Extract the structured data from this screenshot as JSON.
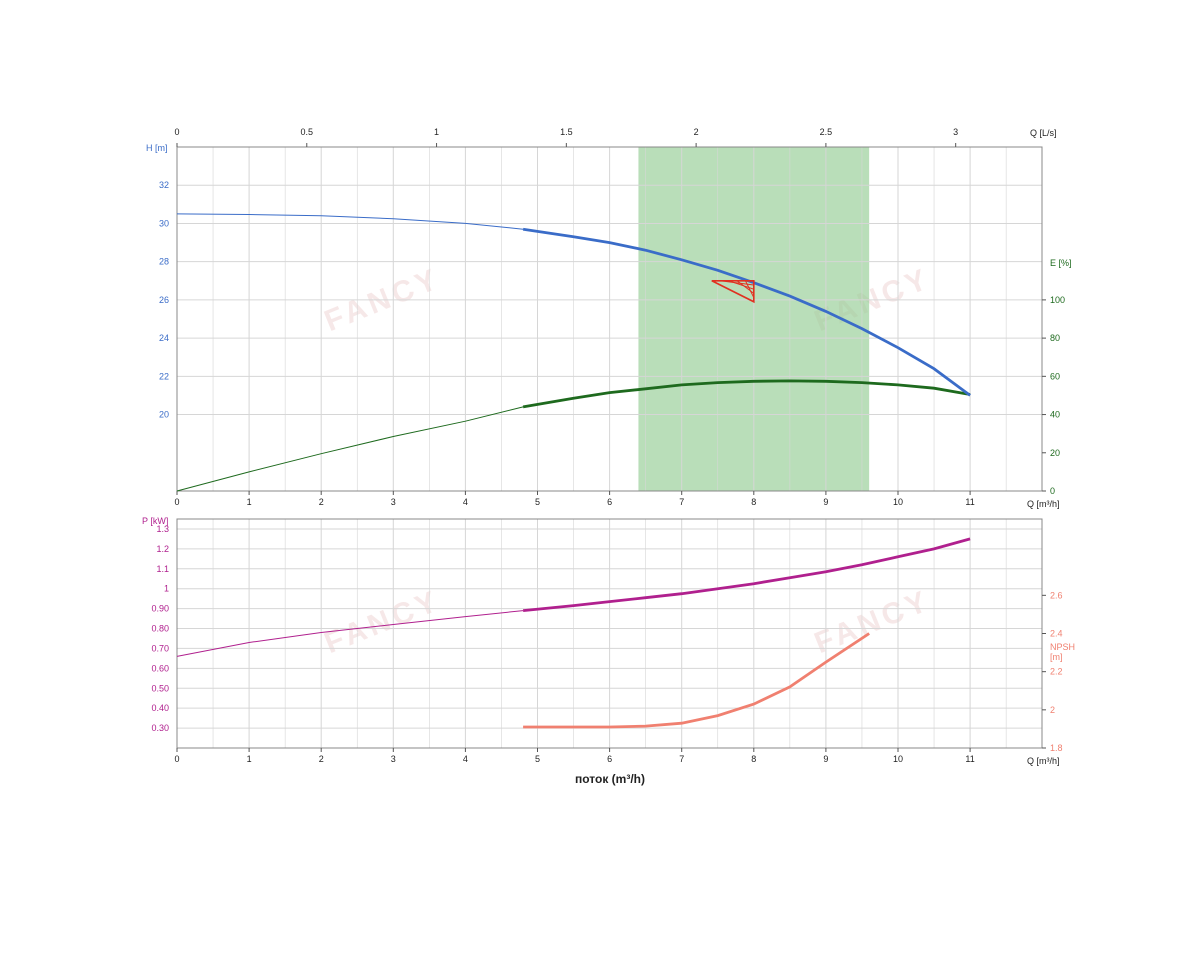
{
  "colors": {
    "head": "#3a6cc8",
    "efficiency": "#1e6a1e",
    "power": "#b0208e",
    "npsh": "#f08070",
    "range": "#93cc93",
    "marker": "#e03020",
    "grid": "#d6d6d6",
    "axis_text": "#222222"
  },
  "chart_data": [
    {
      "type": "line",
      "xlabel": "Q [m³/h]",
      "xlabel_top": "Q [L/s]",
      "x_ticks": [
        "0",
        "1",
        "2",
        "3",
        "4",
        "5",
        "6",
        "7",
        "8",
        "9",
        "10",
        "11"
      ],
      "x_top_ticks": [
        "0",
        "0.5",
        "1",
        "1.5",
        "2",
        "2.5",
        "3"
      ],
      "xlim": [
        0,
        12
      ],
      "grid": true,
      "operating_range": [
        6.4,
        9.6
      ],
      "duty_point": {
        "x": 8,
        "y": 27
      },
      "left_axis": {
        "label": "H [m]",
        "ticks": [
          "20",
          "22",
          "24",
          "26",
          "28",
          "30",
          "32"
        ],
        "ylim": [
          16,
          34
        ]
      },
      "right_axis": {
        "label": "E [%]",
        "ticks": [
          "0",
          "20",
          "40",
          "60",
          "80",
          "100"
        ],
        "ylim": [
          0,
          180
        ]
      },
      "series": [
        {
          "name": "H",
          "axis": "left",
          "x": [
            0,
            1,
            2,
            3,
            4,
            4.8,
            5.5,
            6,
            6.5,
            7,
            7.5,
            8,
            8.5,
            9,
            9.5,
            10,
            10.5,
            11
          ],
          "values": [
            30.5,
            30.47,
            30.4,
            30.25,
            30.0,
            29.7,
            29.3,
            29.0,
            28.6,
            28.1,
            27.55,
            26.9,
            26.2,
            25.4,
            24.5,
            23.5,
            22.4,
            21.0
          ],
          "emphasis_from": 4.8
        },
        {
          "name": "E",
          "axis": "right",
          "x": [
            0,
            1,
            2,
            3,
            4,
            4.8,
            5.5,
            6,
            6.5,
            7,
            7.5,
            8,
            8.5,
            9,
            9.5,
            10,
            10.5,
            11
          ],
          "values": [
            0,
            10,
            19.5,
            28.5,
            36.5,
            44,
            48.5,
            51.5,
            53.5,
            55.5,
            56.7,
            57.4,
            57.6,
            57.4,
            56.7,
            55.5,
            53.8,
            50.5
          ],
          "emphasis_from": 4.8
        }
      ]
    },
    {
      "type": "line",
      "xlabel": "Q [m³/h]",
      "x_title": "поток (m³/h)",
      "x_ticks": [
        "0",
        "1",
        "2",
        "3",
        "4",
        "5",
        "6",
        "7",
        "8",
        "9",
        "10",
        "11"
      ],
      "xlim": [
        0,
        12
      ],
      "grid": true,
      "left_axis": {
        "label": "P [kW]",
        "ticks": [
          "0.30",
          "0.40",
          "0.50",
          "0.60",
          "0.70",
          "0.80",
          "0.90",
          "1",
          "1.1",
          "1.2",
          "1.3"
        ],
        "ylim": [
          0.2,
          1.35
        ]
      },
      "right_axis": {
        "label_line1": "NPSH",
        "label_line2": "[m]",
        "ticks": [
          "1.8",
          "2",
          "2.2",
          "2.4",
          "2.6"
        ],
        "ylim": [
          1.8,
          3.0
        ]
      },
      "series": [
        {
          "name": "P",
          "axis": "left",
          "x": [
            0,
            1,
            2,
            3,
            4,
            4.8,
            5.5,
            6,
            6.5,
            7,
            7.5,
            8,
            8.5,
            9,
            9.5,
            10,
            10.5,
            11
          ],
          "values": [
            0.66,
            0.73,
            0.78,
            0.82,
            0.86,
            0.89,
            0.915,
            0.935,
            0.955,
            0.975,
            1.0,
            1.025,
            1.055,
            1.085,
            1.12,
            1.16,
            1.2,
            1.25
          ],
          "emphasis_from": 4.8
        },
        {
          "name": "NPSH",
          "axis": "right",
          "x": [
            4.8,
            5.5,
            6,
            6.5,
            7,
            7.5,
            8,
            8.5,
            9,
            9.6
          ],
          "values": [
            1.91,
            1.91,
            1.91,
            1.915,
            1.93,
            1.97,
            2.03,
            2.12,
            2.25,
            2.4
          ]
        }
      ]
    }
  ]
}
